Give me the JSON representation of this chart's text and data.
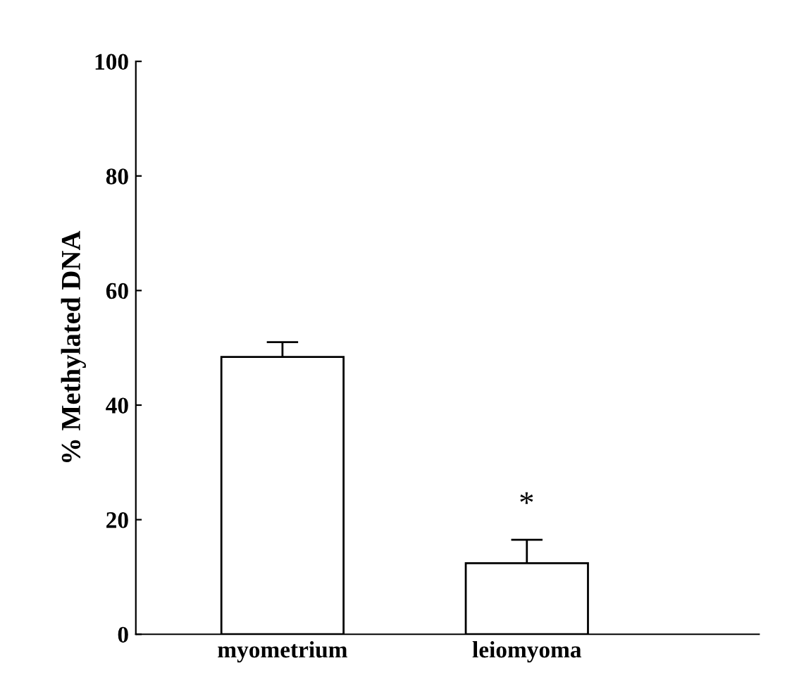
{
  "chart_data": {
    "type": "bar",
    "ylabel": "% Methylated DNA",
    "categories": [
      "myometrium",
      "leiomyoma"
    ],
    "values": [
      48.4,
      12.4
    ],
    "errors": [
      2.6,
      4.1
    ],
    "color": "#ffffff",
    "ylim": [
      0,
      100
    ],
    "yticks": [
      0,
      20,
      40,
      60,
      80,
      100
    ],
    "annotations": [
      "*"
    ],
    "grid": false,
    "legend": false
  }
}
